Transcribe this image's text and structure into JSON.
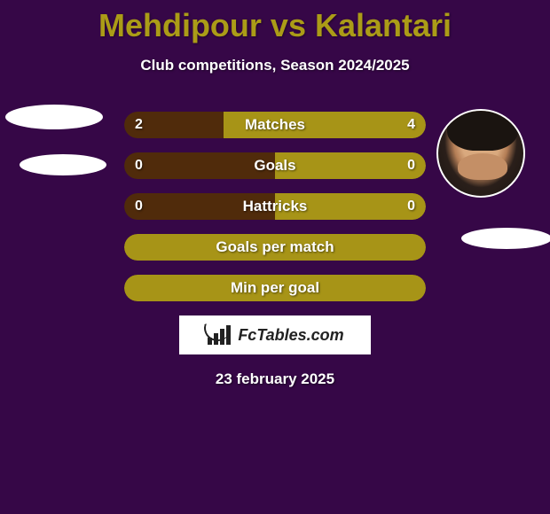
{
  "background_color": "#360747",
  "title": {
    "text": "Mehdipour vs Kalantari",
    "color": "#ab9c17",
    "fontsize": 36
  },
  "subtitle": {
    "text": "Club competitions, Season 2024/2025",
    "color": "#ffffff",
    "fontsize": 17
  },
  "players": {
    "left_name": "Mehdipour",
    "right_name": "Kalantari"
  },
  "bar_style": {
    "height": 30,
    "gap": 16,
    "radius": 16,
    "label_fontsize": 17,
    "value_fontsize": 16,
    "text_color": "#ffffff",
    "color_left": "#502b0b",
    "color_right": "#a79417",
    "color_full": "#a79417",
    "track_width": 340
  },
  "bars": [
    {
      "label": "Matches",
      "left": "2",
      "right": "4",
      "left_pct": 33,
      "right_pct": 67,
      "mode": "split"
    },
    {
      "label": "Goals",
      "left": "0",
      "right": "0",
      "left_pct": 50,
      "right_pct": 50,
      "mode": "split"
    },
    {
      "label": "Hattricks",
      "left": "0",
      "right": "0",
      "left_pct": 50,
      "right_pct": 50,
      "mode": "split"
    },
    {
      "label": "Goals per match",
      "left": "",
      "right": "",
      "mode": "full"
    },
    {
      "label": "Min per goal",
      "left": "",
      "right": "",
      "mode": "full"
    }
  ],
  "logo": {
    "text": "FcTables.com",
    "bg": "#ffffff",
    "text_color": "#222222"
  },
  "footer_date": "23 february 2025"
}
